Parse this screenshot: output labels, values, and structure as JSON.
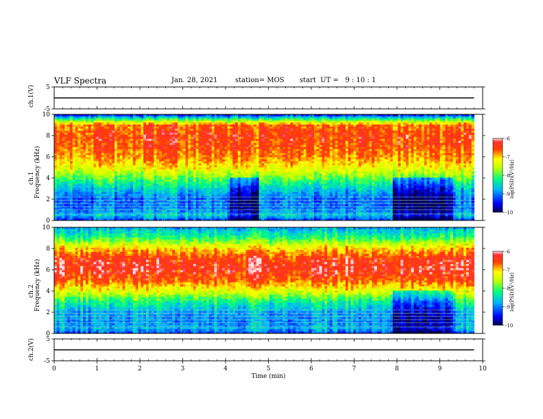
{
  "header": {
    "title": "VLF Spectra",
    "date": "Jan. 28, 2021",
    "station": "station= MOS",
    "start": "start  UT =   9 : 10 : 1"
  },
  "chart_data": [
    {
      "type": "line",
      "panel": "ch1-waveform",
      "ylabel": "ch.1(V)",
      "ylim": [
        -5,
        5
      ],
      "yticks": [
        "5",
        "-5"
      ],
      "xlim": [
        0,
        10
      ],
      "series": [
        {
          "x": [
            0,
            9.8
          ],
          "y": [
            0,
            0
          ]
        }
      ]
    },
    {
      "type": "heatmap",
      "panel": "ch1-spectrogram",
      "ylabel": "ch.1",
      "ylabel2": "Frequency (kHz)",
      "ylim": [
        0,
        10
      ],
      "yticks": [
        "0",
        "2",
        "4",
        "6",
        "8",
        "10"
      ],
      "xlim": [
        0,
        10
      ],
      "data_xmax": 9.8,
      "colorbar": {
        "label": "log(PSD)(V²/Hz)",
        "range": [
          -10,
          -6
        ],
        "ticks": [
          "-6",
          "-7",
          "-8",
          "-9",
          "-10"
        ]
      },
      "profile": [
        {
          "f": 0.0,
          "v": -9.3
        },
        {
          "f": 0.5,
          "v": -8.6
        },
        {
          "f": 1.0,
          "v": -9.0
        },
        {
          "f": 2.0,
          "v": -9.1
        },
        {
          "f": 3.0,
          "v": -8.6
        },
        {
          "f": 4.0,
          "v": -7.9
        },
        {
          "f": 5.0,
          "v": -7.2
        },
        {
          "f": 6.0,
          "v": -6.8
        },
        {
          "f": 7.0,
          "v": -6.6
        },
        {
          "f": 8.0,
          "v": -6.5
        },
        {
          "f": 9.0,
          "v": -6.7
        },
        {
          "f": 9.5,
          "v": -8.0
        },
        {
          "f": 10.0,
          "v": -9.6
        }
      ],
      "dark_intervals_min": [
        [
          4.1,
          4.8
        ],
        [
          7.9,
          9.3
        ]
      ]
    },
    {
      "type": "heatmap",
      "panel": "ch2-spectrogram",
      "ylabel": "ch.2",
      "ylabel2": "Frequency (kHz)",
      "ylim": [
        0,
        10
      ],
      "yticks": [
        "0",
        "2",
        "4",
        "6",
        "8",
        "10"
      ],
      "xlim": [
        0,
        10
      ],
      "data_xmax": 9.8,
      "colorbar": {
        "label": "log(PSD)(V²/Hz)",
        "range": [
          -10,
          -6
        ],
        "ticks": [
          "-6",
          "-7",
          "-8",
          "-9",
          "-10"
        ]
      },
      "profile": [
        {
          "f": 0.0,
          "v": -9.2
        },
        {
          "f": 0.5,
          "v": -8.7
        },
        {
          "f": 1.0,
          "v": -8.9
        },
        {
          "f": 2.0,
          "v": -8.8
        },
        {
          "f": 3.0,
          "v": -8.2
        },
        {
          "f": 4.0,
          "v": -7.3
        },
        {
          "f": 5.0,
          "v": -6.6
        },
        {
          "f": 6.0,
          "v": -6.3
        },
        {
          "f": 7.0,
          "v": -6.4
        },
        {
          "f": 8.0,
          "v": -7.0
        },
        {
          "f": 9.0,
          "v": -8.1
        },
        {
          "f": 10.0,
          "v": -8.8
        }
      ],
      "dark_intervals_min": [
        [
          7.9,
          9.3
        ]
      ]
    },
    {
      "type": "line",
      "panel": "ch2-waveform",
      "ylabel": "ch.2(V)",
      "ylim": [
        -5,
        5
      ],
      "yticks": [
        "5",
        "-5"
      ],
      "xlim": [
        0,
        10
      ],
      "xticks": [
        "0",
        "1",
        "2",
        "3",
        "4",
        "5",
        "6",
        "7",
        "8",
        "9",
        "10"
      ],
      "xlabel": "Time  (min)",
      "series": [
        {
          "x": [
            0,
            9.8
          ],
          "y": [
            0,
            0
          ]
        }
      ]
    }
  ]
}
